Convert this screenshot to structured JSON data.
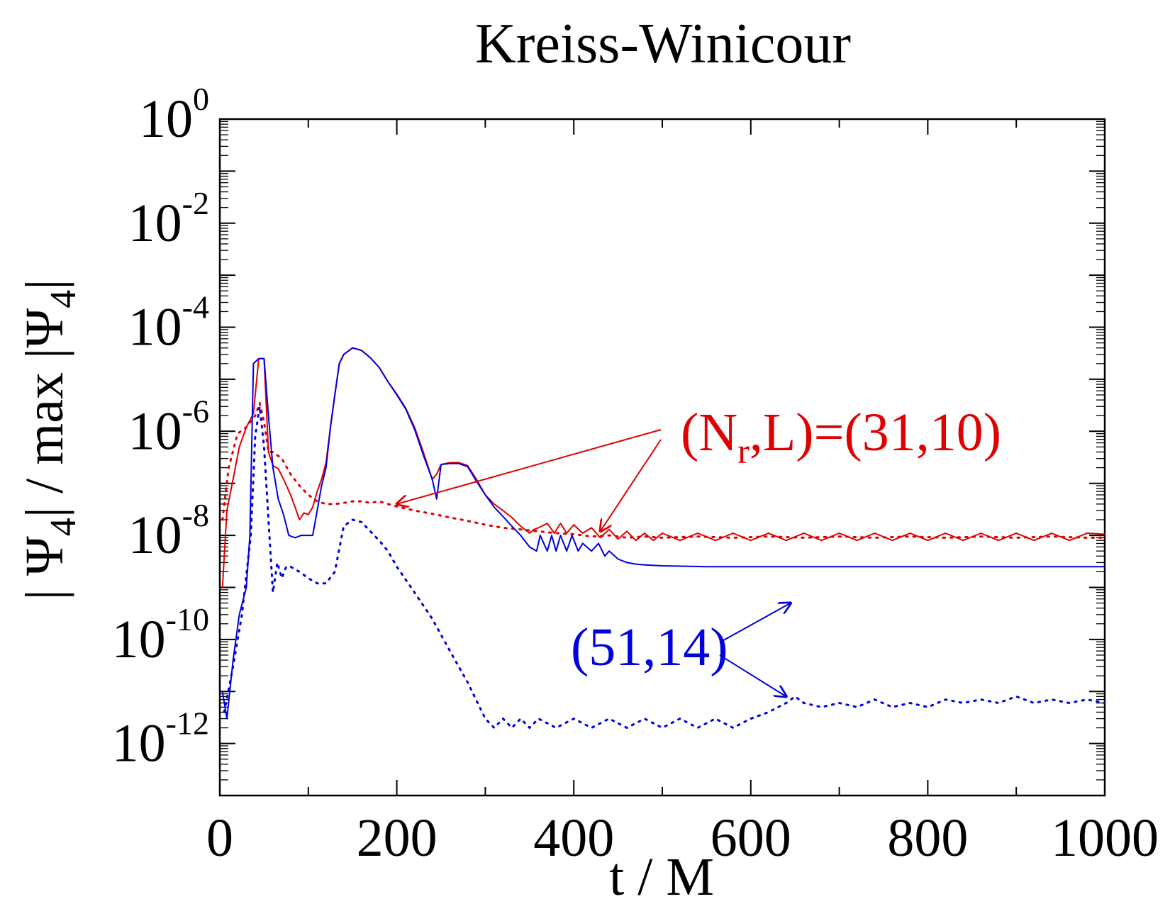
{
  "chart_data": {
    "type": "line",
    "title": "Kreiss-Winicour",
    "xlabel": "t / M",
    "ylabel": {
      "pre": "| Ψ",
      "sub1": "4",
      "mid": "| / max |Ψ",
      "sub2": "4",
      "post": "|"
    },
    "xlim": [
      0,
      1000
    ],
    "ylim": [
      1e-13,
      1
    ],
    "yscale": "log",
    "grid": false,
    "x_ticks": [
      {
        "value": 0,
        "label": "0"
      },
      {
        "value": 200,
        "label": "200"
      },
      {
        "value": 400,
        "label": "400"
      },
      {
        "value": 600,
        "label": "600"
      },
      {
        "value": 800,
        "label": "800"
      },
      {
        "value": 1000,
        "label": "1000"
      }
    ],
    "y_ticks": [
      {
        "value": 1,
        "base": "10",
        "exp": "0"
      },
      {
        "value": 0.01,
        "base": "10",
        "exp": "-2"
      },
      {
        "value": 0.0001,
        "base": "10",
        "exp": "-4"
      },
      {
        "value": 1e-06,
        "base": "10",
        "exp": "-6"
      },
      {
        "value": 1e-08,
        "base": "10",
        "exp": "-8"
      },
      {
        "value": 1e-10,
        "base": "10",
        "exp": "-10"
      },
      {
        "value": 1e-12,
        "base": "10",
        "exp": "-12"
      }
    ],
    "series": [
      {
        "color": "#e00000",
        "style": "solid",
        "x": [
          3,
          8,
          15,
          22,
          30,
          38,
          44,
          50,
          55,
          60,
          66,
          72,
          80,
          85,
          90,
          95,
          100,
          105,
          110,
          115,
          120,
          125,
          130,
          135,
          140,
          150,
          160,
          170,
          180,
          190,
          200,
          210,
          220,
          230,
          240,
          245,
          250,
          260,
          270,
          280,
          290,
          300,
          310,
          320,
          330,
          340,
          350,
          355,
          360,
          370,
          378,
          385,
          392,
          400,
          410,
          420,
          430,
          440,
          450,
          460,
          470,
          480,
          490,
          500,
          520,
          540,
          560,
          580,
          600,
          620,
          640,
          660,
          680,
          700,
          720,
          740,
          760,
          780,
          800,
          820,
          840,
          860,
          880,
          900,
          920,
          940,
          960,
          980,
          1000
        ],
        "y": [
          1e-09,
          3e-08,
          1.2e-07,
          5e-07,
          1.2e-06,
          2.2e-06,
          2.5e-05,
          2.5e-05,
          4e-07,
          2.2e-07,
          1.9e-07,
          1.2e-07,
          6e-08,
          3.5e-08,
          2e-08,
          2.7e-08,
          2.5e-08,
          3.5e-08,
          7e-08,
          1.2e-07,
          2.5e-07,
          1.2e-06,
          5e-06,
          2e-05,
          3e-05,
          4e-05,
          3.6e-05,
          2.6e-05,
          1.7e-05,
          9e-06,
          5.2e-06,
          2.8e-06,
          1.2e-06,
          4e-07,
          1.2e-07,
          1.5e-07,
          2.3e-07,
          2.5e-07,
          2.5e-07,
          2.2e-07,
          1.2e-07,
          6e-08,
          4e-08,
          3e-08,
          2.2e-08,
          1.5e-08,
          1.1e-08,
          1.3e-08,
          1.4e-08,
          1.7e-08,
          1.1e-08,
          1.7e-08,
          1.1e-08,
          1.6e-08,
          1.1e-08,
          1.4e-08,
          9e-09,
          1.3e-08,
          8.5e-09,
          1.2e-08,
          8e-09,
          1.1e-08,
          8e-09,
          1.1e-08,
          8e-09,
          1.1e-08,
          8e-09,
          1.1e-08,
          8e-09,
          1.1e-08,
          8e-09,
          1.1e-08,
          8e-09,
          1.1e-08,
          8e-09,
          1.1e-08,
          8e-09,
          1.1e-08,
          8e-09,
          1.1e-08,
          8e-09,
          1.1e-08,
          8e-09,
          1.1e-08,
          8e-09,
          1.1e-08,
          8e-09,
          1.1e-08,
          1.05e-08
        ]
      },
      {
        "color": "#e00000",
        "style": "dotted",
        "x": [
          3,
          10,
          20,
          30,
          40,
          45,
          50,
          55,
          60,
          70,
          80,
          90,
          100,
          110,
          120,
          130,
          140,
          150,
          160,
          170,
          180,
          190,
          200,
          220,
          240,
          260,
          280,
          300,
          320,
          340,
          360,
          380,
          400,
          420,
          440,
          460,
          480,
          500,
          540,
          580,
          620,
          660,
          700,
          740,
          780,
          820,
          860,
          900,
          940,
          980,
          1000
        ],
        "y": [
          2e-08,
          2e-07,
          9e-07,
          1.2e-06,
          2e-06,
          3.5e-06,
          1.5e-06,
          4e-07,
          4e-07,
          3e-07,
          1.5e-07,
          9e-08,
          6e-08,
          4.5e-08,
          4e-08,
          4e-08,
          4.2e-08,
          4.5e-08,
          4.5e-08,
          4.2e-08,
          4.5e-08,
          4e-08,
          3.6e-08,
          3e-08,
          2.6e-08,
          2.2e-08,
          1.9e-08,
          1.6e-08,
          1.4e-08,
          1.3e-08,
          1.2e-08,
          1.1e-08,
          1.05e-08,
          9.5e-09,
          1e-08,
          9e-09,
          9.5e-09,
          9e-09,
          9.5e-09,
          9e-09,
          9.5e-09,
          9e-09,
          9.5e-09,
          9e-09,
          9.5e-09,
          9e-09,
          9.5e-09,
          9e-09,
          9.5e-09,
          9e-09,
          9e-09
        ]
      },
      {
        "color": "#0000e0",
        "style": "solid",
        "x": [
          3,
          8,
          15,
          22,
          30,
          34,
          38,
          44,
          50,
          55,
          60,
          66,
          72,
          78,
          85,
          92,
          100,
          105,
          110,
          115,
          120,
          125,
          130,
          135,
          140,
          150,
          160,
          170,
          180,
          190,
          200,
          210,
          220,
          230,
          240,
          245,
          250,
          260,
          270,
          280,
          290,
          300,
          310,
          320,
          330,
          340,
          350,
          358,
          362,
          370,
          375,
          380,
          385,
          392,
          398,
          405,
          410,
          420,
          428,
          435,
          440,
          450,
          460,
          470,
          480,
          500,
          550,
          600,
          700,
          800,
          900,
          1000
        ],
        "y": [
          1e-11,
          3e-12,
          4e-11,
          3e-10,
          1e-09,
          1e-08,
          2e-05,
          2.5e-05,
          2.5e-05,
          2e-06,
          2e-07,
          5e-08,
          2.5e-08,
          1e-08,
          9e-09,
          1e-08,
          1e-08,
          1e-08,
          3e-08,
          9e-08,
          2e-07,
          1.2e-06,
          5e-06,
          2e-05,
          3e-05,
          4e-05,
          3.6e-05,
          2.6e-05,
          1.7e-05,
          9e-06,
          5e-06,
          2.7e-06,
          1.1e-06,
          3.5e-07,
          1.2e-07,
          5e-08,
          2.3e-07,
          2.4e-07,
          2.4e-07,
          2.1e-07,
          1.1e-07,
          6e-08,
          3.5e-08,
          2.3e-08,
          1.5e-08,
          1e-08,
          6e-09,
          5e-09,
          1e-08,
          5e-09,
          1e-08,
          5e-09,
          1e-08,
          5e-09,
          1e-08,
          5e-09,
          7e-09,
          5e-09,
          7e-09,
          4e-09,
          5e-09,
          3.5e-09,
          3e-09,
          2.8e-09,
          2.7e-09,
          2.6e-09,
          2.5e-09,
          2.5e-09,
          2.5e-09,
          2.5e-09,
          2.5e-09,
          2.5e-09
        ]
      },
      {
        "color": "#0000e0",
        "style": "dotted",
        "x": [
          5,
          15,
          25,
          35,
          40,
          45,
          50,
          55,
          60,
          65,
          70,
          75,
          80,
          90,
          100,
          110,
          120,
          130,
          140,
          150,
          160,
          170,
          180,
          190,
          200,
          220,
          240,
          260,
          280,
          300,
          310,
          320,
          330,
          340,
          350,
          360,
          380,
          400,
          420,
          440,
          460,
          480,
          500,
          520,
          540,
          560,
          580,
          600,
          620,
          640,
          650,
          660,
          680,
          700,
          720,
          740,
          760,
          780,
          800,
          820,
          840,
          860,
          880,
          900,
          920,
          940,
          960,
          980,
          1000
        ],
        "y": [
          4e-12,
          3e-11,
          3e-10,
          1e-08,
          8e-07,
          3e-06,
          5e-07,
          2e-08,
          8e-10,
          3e-09,
          1.5e-09,
          2.5e-09,
          2.5e-09,
          2e-09,
          1.5e-09,
          1.2e-09,
          1.2e-09,
          2e-09,
          1.5e-08,
          2e-08,
          1.8e-08,
          1.2e-08,
          8e-09,
          5e-09,
          2.5e-09,
          8e-10,
          2.5e-10,
          6e-11,
          1.5e-11,
          3e-12,
          2e-12,
          3e-12,
          2e-12,
          3e-12,
          2e-12,
          3e-12,
          2e-12,
          3e-12,
          2e-12,
          3e-12,
          2e-12,
          3e-12,
          2e-12,
          3e-12,
          2e-12,
          3e-12,
          2e-12,
          3e-12,
          4e-12,
          6e-12,
          8e-12,
          6e-12,
          5e-12,
          6e-12,
          5e-12,
          7e-12,
          5e-12,
          6e-12,
          5e-12,
          7e-12,
          6e-12,
          7e-12,
          6e-12,
          8e-12,
          6e-12,
          7e-12,
          6e-12,
          7e-12,
          6e-12
        ]
      }
    ],
    "annotations": [
      {
        "text": {
          "pre": "(N",
          "sub": "r",
          "post": ",L)=(31,10)"
        },
        "color": "#e00000",
        "arrows_to": [
          {
            "x": 200,
            "y": 4e-08
          },
          {
            "x": 430,
            "y": 1.2e-08
          }
        ]
      },
      {
        "text": {
          "pre": "(51,14)",
          "sub": "",
          "post": ""
        },
        "color": "#0000e0",
        "arrows_to": [
          {
            "x": 645,
            "y": 5e-10
          },
          {
            "x": 640,
            "y": 8e-12
          }
        ]
      }
    ]
  }
}
